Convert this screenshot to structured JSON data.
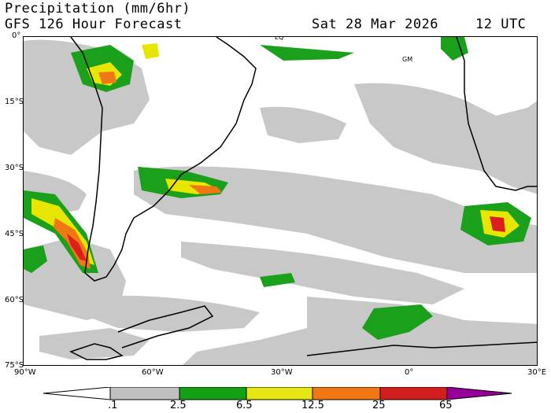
{
  "header": {
    "title": "Precipitation (mm/6hr)",
    "model": "GFS 126 Hour Forecast",
    "date": "Sat 28 Mar 2026",
    "time": "12 UTC"
  },
  "map": {
    "lat_labels": [
      "0°",
      "15°S",
      "30°S",
      "45°S",
      "60°S",
      "75°S"
    ],
    "lon_labels": [
      "90°W",
      "60°W",
      "30°W",
      "0°",
      "30°E"
    ],
    "annotations": {
      "equator": "EQ",
      "greenwich": "GM"
    },
    "colors": {
      "land_outline": "#000000",
      "light": "#c8c8c8",
      "green": "#1aa01a",
      "yellow": "#e6e600",
      "orange": "#f07814",
      "red": "#dc1e1e",
      "purple": "#9b00a0"
    }
  },
  "colorbar": {
    "labels": [
      ".1",
      "2.5",
      "6.5",
      "12.5",
      "25",
      "65"
    ],
    "colors": [
      "#ffffff",
      "#c0c0c0",
      "#14a014",
      "#e6e614",
      "#f07814",
      "#d21e1e",
      "#960096"
    ]
  }
}
